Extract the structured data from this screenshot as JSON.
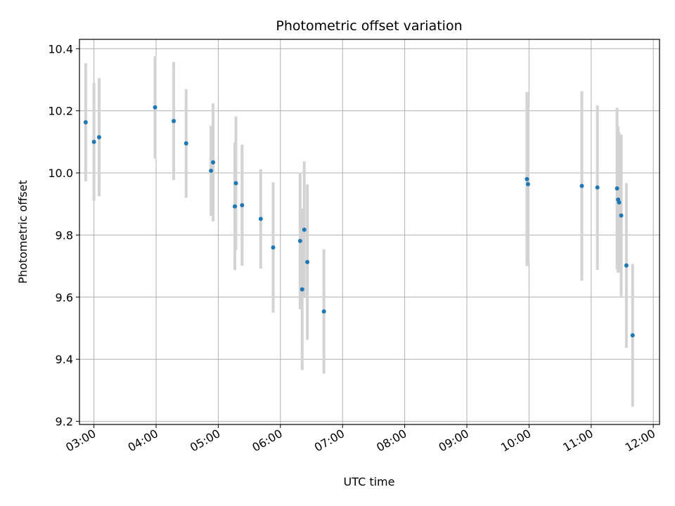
{
  "chart_data": {
    "type": "scatter",
    "title": "Photometric offset variation",
    "xlabel": "UTC time",
    "ylabel": "Photometric offset",
    "xlim": [
      "02:46",
      "12:06"
    ],
    "ylim": [
      9.19,
      10.43
    ],
    "x_ticks": [
      "03:00",
      "04:00",
      "05:00",
      "06:00",
      "07:00",
      "08:00",
      "09:00",
      "10:00",
      "11:00",
      "12:00"
    ],
    "y_ticks": [
      "9.2",
      "9.4",
      "9.6",
      "9.8",
      "10.0",
      "10.2",
      "10.4"
    ],
    "grid": true,
    "marker_color": "#1f77b4",
    "errorbar_color": "#d3d3d3",
    "points": [
      {
        "t": "02:52",
        "y": 10.163,
        "err": 0.19
      },
      {
        "t": "03:00",
        "y": 10.1,
        "err": 0.19
      },
      {
        "t": "03:05",
        "y": 10.115,
        "err": 0.19
      },
      {
        "t": "03:59",
        "y": 10.211,
        "err": 0.165
      },
      {
        "t": "04:17",
        "y": 10.167,
        "err": 0.19
      },
      {
        "t": "04:29",
        "y": 10.095,
        "err": 0.175
      },
      {
        "t": "04:53",
        "y": 10.007,
        "err": 0.145
      },
      {
        "t": "04:55",
        "y": 10.034,
        "err": 0.19
      },
      {
        "t": "05:16",
        "y": 9.892,
        "err": 0.205
      },
      {
        "t": "05:17",
        "y": 9.967,
        "err": 0.215
      },
      {
        "t": "05:23",
        "y": 9.896,
        "err": 0.195
      },
      {
        "t": "05:41",
        "y": 9.852,
        "err": 0.16
      },
      {
        "t": "05:53",
        "y": 9.76,
        "err": 0.21
      },
      {
        "t": "06:19",
        "y": 9.781,
        "err": 0.22
      },
      {
        "t": "06:21",
        "y": 9.625,
        "err": 0.26
      },
      {
        "t": "06:23",
        "y": 9.817,
        "err": 0.22
      },
      {
        "t": "06:26",
        "y": 9.713,
        "err": 0.25
      },
      {
        "t": "06:42",
        "y": 9.554,
        "err": 0.2
      },
      {
        "t": "09:58",
        "y": 9.98,
        "err": 0.28
      },
      {
        "t": "09:59",
        "y": 9.964,
        "err": 0.25
      },
      {
        "t": "10:51",
        "y": 9.958,
        "err": 0.305
      },
      {
        "t": "11:06",
        "y": 9.953,
        "err": 0.265
      },
      {
        "t": "11:25",
        "y": 9.95,
        "err": 0.26
      },
      {
        "t": "11:26",
        "y": 9.914,
        "err": 0.235
      },
      {
        "t": "11:27",
        "y": 9.905,
        "err": 0.225
      },
      {
        "t": "11:29",
        "y": 9.863,
        "err": 0.26
      },
      {
        "t": "11:34",
        "y": 9.702,
        "err": 0.265
      },
      {
        "t": "11:40",
        "y": 9.477,
        "err": 0.23
      }
    ]
  }
}
